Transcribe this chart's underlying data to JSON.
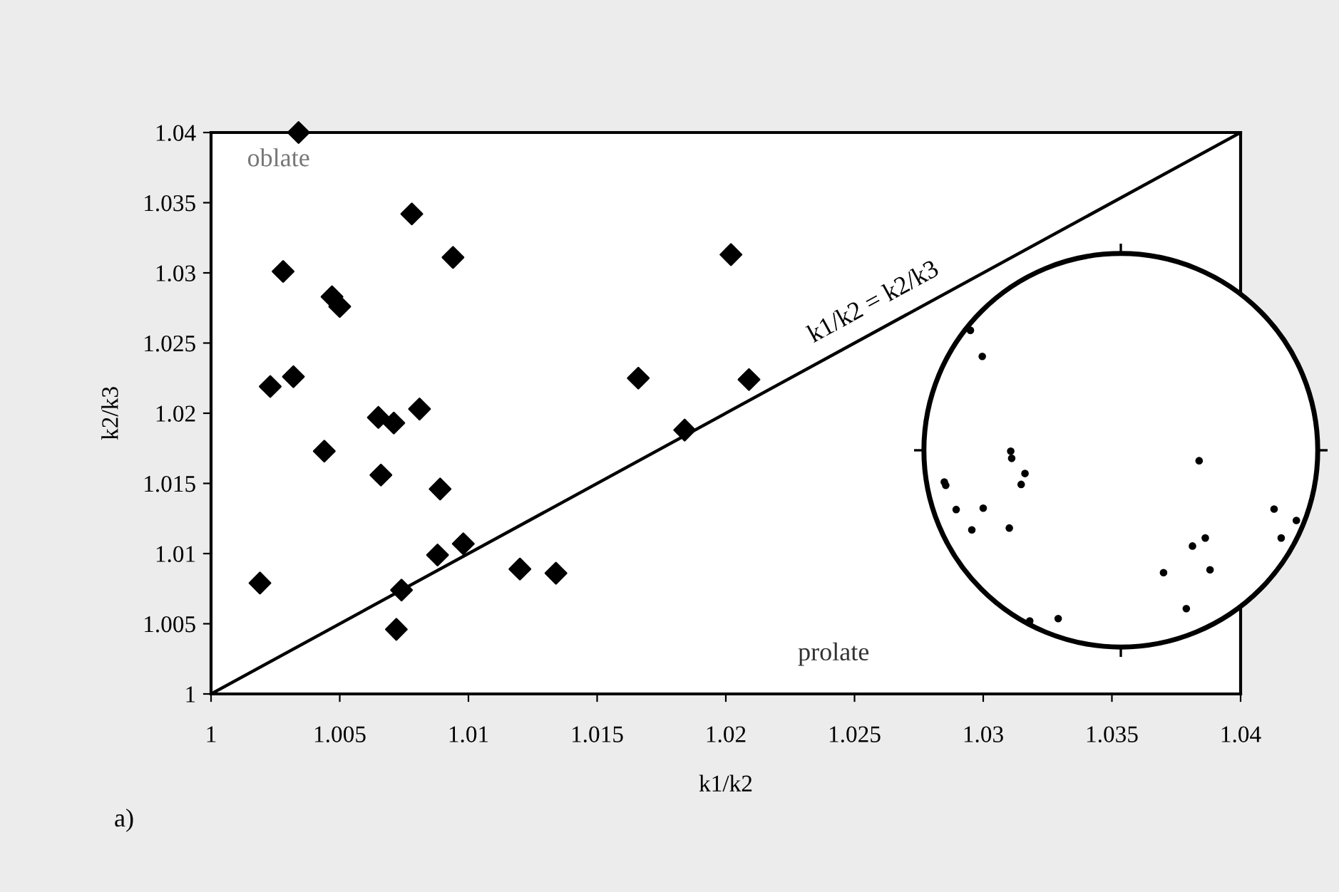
{
  "chart_data": {
    "type": "scatter",
    "xlabel": "k1/k2",
    "ylabel": "k2/k3",
    "xlim": [
      1,
      1.04
    ],
    "ylim": [
      1,
      1.04
    ],
    "xticks": [
      1,
      1.005,
      1.01,
      1.015,
      1.02,
      1.025,
      1.03,
      1.035,
      1.04
    ],
    "yticks": [
      1,
      1.005,
      1.01,
      1.015,
      1.02,
      1.025,
      1.03,
      1.035,
      1.04
    ],
    "grid": false,
    "legend": false,
    "series": [
      {
        "marker": "diamond",
        "color": "#000000",
        "x": [
          1.0034,
          1.0078,
          1.0094,
          1.0028,
          1.0047,
          1.005,
          1.0023,
          1.0032,
          1.0065,
          1.0071,
          1.0081,
          1.0044,
          1.0066,
          1.0089,
          1.0088,
          1.0098,
          1.0019,
          1.0074,
          1.0072,
          1.012,
          1.0134,
          1.0202,
          1.0166,
          1.0209,
          1.0184
        ],
        "values": [
          1.04,
          1.0342,
          1.0311,
          1.0301,
          1.0283,
          1.0276,
          1.0219,
          1.0226,
          1.0197,
          1.0193,
          1.0203,
          1.0173,
          1.0156,
          1.0146,
          1.0099,
          1.0107,
          1.0079,
          1.0074,
          1.0046,
          1.0089,
          1.0086,
          1.0313,
          1.0225,
          1.0224,
          1.0188
        ]
      },
      {
        "type": "line",
        "color": "#000000",
        "x": [
          1,
          1.04
        ],
        "values": [
          1,
          1.04
        ]
      }
    ],
    "annotations": [
      "oblate",
      "k1/k2 = k2/k3",
      "prolate",
      "a)"
    ]
  }
}
